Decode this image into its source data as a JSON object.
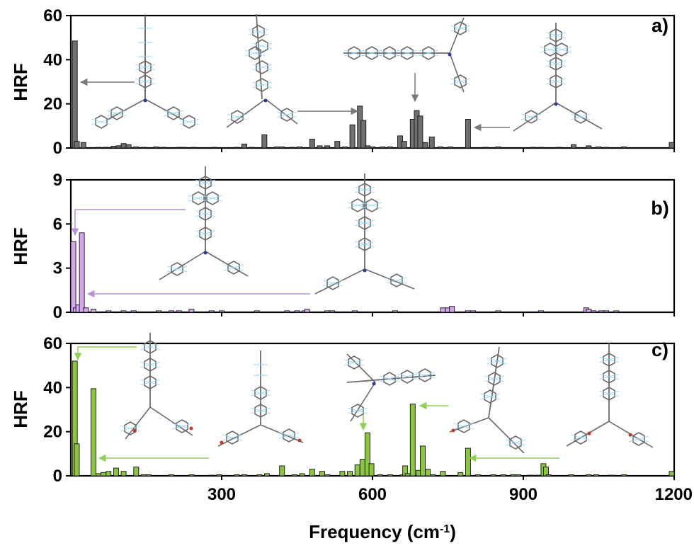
{
  "figure": {
    "xlabel_main": "Frequency (cm",
    "xlabel_sup": "-1",
    "xlabel_end": ")",
    "xticks": [
      "300",
      "600",
      "900",
      "1200"
    ]
  },
  "colors": {
    "a": "#707070",
    "b": "#d4a5f0",
    "c": "#8cc63f",
    "arrow_a": "#7a7a7a",
    "arrow_b": "#b493d6",
    "arrow_c": "#8fd14f",
    "molecule": "#7a7a7a",
    "molecule_h": "#8fd3f4"
  },
  "chart_data": [
    {
      "type": "bar",
      "panel": "a)",
      "ylabel": "HRF",
      "xlim": [
        0,
        1200
      ],
      "ylim": [
        0,
        60
      ],
      "yticks": [
        "0",
        "20",
        "40",
        "60"
      ],
      "x": [
        8,
        12,
        25,
        55,
        70,
        85,
        95,
        105,
        115,
        130,
        145,
        170,
        185,
        215,
        225,
        245,
        285,
        330,
        345,
        360,
        385,
        410,
        420,
        440,
        455,
        480,
        495,
        510,
        530,
        545,
        560,
        575,
        582,
        590,
        600,
        620,
        635,
        655,
        663,
        680,
        688,
        695,
        705,
        718,
        735,
        755,
        790,
        825,
        850,
        920,
        935,
        970,
        1000,
        1030,
        1050,
        1065,
        1100,
        1195
      ],
      "values": [
        48.5,
        3,
        2.5,
        0.3,
        0.3,
        0.8,
        1,
        2,
        1.5,
        0.5,
        0.3,
        0.5,
        0.3,
        0.3,
        0.3,
        0.3,
        0.3,
        0.3,
        1.8,
        0.3,
        6,
        0.5,
        0.5,
        0.3,
        0.5,
        4,
        1,
        1,
        3,
        0.5,
        10.5,
        19,
        12.5,
        1,
        0.5,
        0.5,
        0.5,
        5.5,
        3,
        13,
        17,
        14.5,
        2.5,
        5,
        0.5,
        0.5,
        13,
        0.3,
        0.5,
        0.3,
        0.3,
        0.3,
        1.5,
        1,
        0.5,
        0.3,
        0.5,
        2.5
      ]
    },
    {
      "type": "bar",
      "panel": "b)",
      "ylabel": "HRF",
      "xlim": [
        0,
        1200
      ],
      "ylim": [
        0,
        9
      ],
      "yticks": [
        "0",
        "3",
        "6",
        "9"
      ],
      "x": [
        5,
        10,
        15,
        22,
        30,
        45,
        75,
        105,
        125,
        175,
        200,
        215,
        240,
        280,
        300,
        370,
        430,
        450,
        465,
        470,
        510,
        520,
        565,
        645,
        740,
        750,
        758,
        790,
        800,
        850,
        935,
        1025,
        1030,
        1040,
        1055,
        1065,
        1085
      ],
      "values": [
        4.8,
        0.3,
        0.5,
        5.4,
        0.3,
        0.2,
        0.1,
        0.1,
        0.1,
        0.1,
        0.1,
        0.1,
        0.2,
        0.1,
        0.1,
        0.1,
        0.1,
        0.1,
        0.1,
        0.2,
        0.1,
        0.1,
        0.1,
        0.1,
        0.3,
        0.3,
        0.4,
        0.1,
        0.1,
        0.1,
        0.1,
        0.3,
        0.2,
        0.1,
        0.1,
        0.1,
        0.1
      ]
    },
    {
      "type": "bar",
      "panel": "c)",
      "ylabel": "HRF",
      "xlim": [
        0,
        1200
      ],
      "ylim": [
        0,
        60
      ],
      "yticks": [
        "0",
        "20",
        "40",
        "60"
      ],
      "x": [
        8,
        12,
        45,
        55,
        65,
        75,
        90,
        105,
        130,
        145,
        155,
        200,
        240,
        280,
        295,
        330,
        345,
        375,
        390,
        420,
        445,
        460,
        480,
        500,
        510,
        540,
        555,
        570,
        580,
        590,
        598,
        615,
        635,
        660,
        665,
        670,
        680,
        692,
        700,
        710,
        720,
        740,
        775,
        790,
        810,
        840,
        860,
        880,
        890,
        915,
        930,
        940,
        945,
        950,
        995,
        1030,
        1045,
        1075,
        1100,
        1195
      ],
      "values": [
        52,
        14.5,
        39.5,
        1,
        1.5,
        2,
        3.5,
        2,
        4,
        0.5,
        0.5,
        0.5,
        0.5,
        0.3,
        0.5,
        0.5,
        0.5,
        0.5,
        1,
        4.5,
        0.5,
        1,
        3,
        2,
        0.5,
        2,
        2,
        5,
        7.5,
        19.5,
        5.5,
        0.5,
        0.5,
        0.5,
        4.5,
        1,
        32.5,
        2.5,
        13.5,
        3,
        0.5,
        2,
        1.5,
        12.5,
        0.5,
        0.5,
        0.5,
        0.5,
        0.5,
        0.3,
        0.3,
        5.5,
        4,
        0.5,
        0.5,
        0.5,
        0.5,
        0.3,
        0.5,
        2
      ]
    }
  ]
}
